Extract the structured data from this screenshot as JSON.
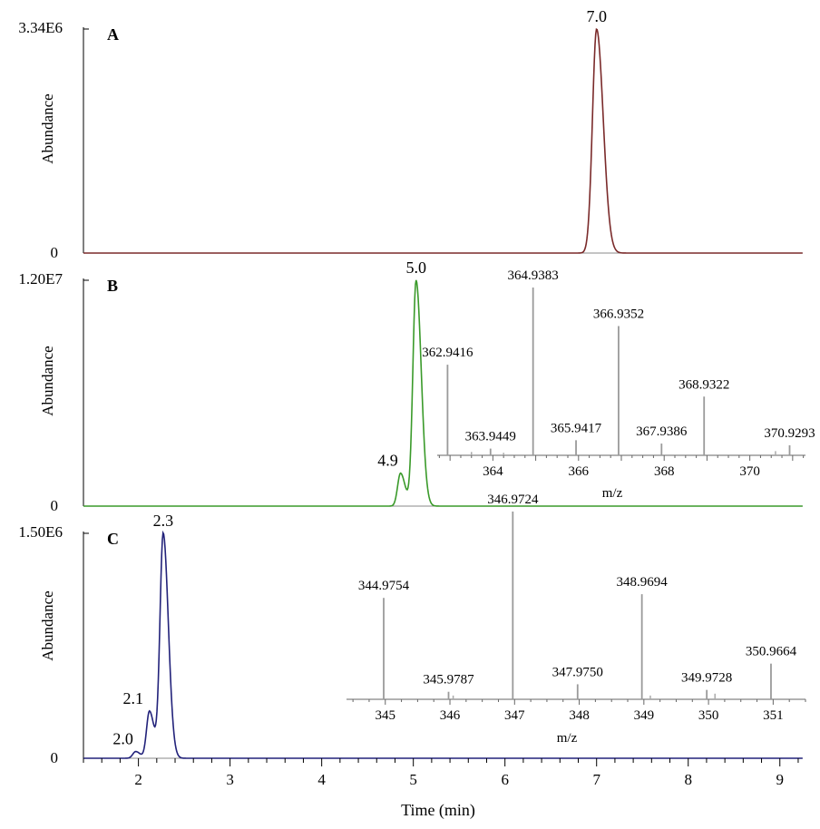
{
  "chart_data": [
    {
      "type": "line",
      "panel_label": "A",
      "y_top_label": "3.34E6",
      "y_zero_label": "0",
      "ylabel": "Abundance",
      "ylim": [
        0,
        3340000
      ],
      "xlim": [
        1.4,
        9.25
      ],
      "color": "#7a2a2a",
      "peaks": [
        {
          "label": "7.0",
          "x": 7.0,
          "y": 3340000
        }
      ]
    },
    {
      "type": "line",
      "panel_label": "B",
      "y_top_label": "1.20E7",
      "y_zero_label": "0",
      "ylabel": "Abundance",
      "ylim": [
        0,
        12000000
      ],
      "xlim": [
        1.4,
        9.25
      ],
      "color": "#3a9a2a",
      "peaks": [
        {
          "label": "4.9",
          "x": 4.86,
          "y": 1750000
        },
        {
          "label": "5.0",
          "x": 5.03,
          "y": 12000000
        }
      ],
      "inset": {
        "type": "bar",
        "xlabel": "m/z",
        "xlim": [
          362.7,
          371.3
        ],
        "ticks": [
          "364",
          "366",
          "368",
          "370"
        ],
        "tick_values": [
          364,
          366,
          368,
          370
        ],
        "labeled_peaks": [
          {
            "mz": "362.9416",
            "x": 362.9416,
            "rel": 0.54
          },
          {
            "mz": "363.9449",
            "x": 363.9449,
            "rel": 0.04
          },
          {
            "mz": "364.9383",
            "x": 364.9383,
            "rel": 1.0
          },
          {
            "mz": "365.9417",
            "x": 365.9417,
            "rel": 0.09
          },
          {
            "mz": "366.9352",
            "x": 366.9352,
            "rel": 0.77
          },
          {
            "mz": "367.9386",
            "x": 367.9386,
            "rel": 0.07
          },
          {
            "mz": "368.9322",
            "x": 368.9322,
            "rel": 0.35
          },
          {
            "mz": "370.9293",
            "x": 370.9293,
            "rel": 0.06
          }
        ],
        "minor_peaks": [
          {
            "x": 363.5,
            "rel": 0.02
          },
          {
            "x": 364.25,
            "rel": 0.015
          },
          {
            "x": 370.6,
            "rel": 0.025
          }
        ]
      }
    },
    {
      "type": "line",
      "panel_label": "C",
      "y_top_label": "1.50E6",
      "y_zero_label": "0",
      "ylabel": "Abundance",
      "ylim": [
        0,
        1500000
      ],
      "xlim": [
        1.4,
        9.25
      ],
      "color": "#22227a",
      "xlabel": "Time (min)",
      "x_ticks": [
        "2",
        "3",
        "4",
        "5",
        "6",
        "7",
        "8",
        "9"
      ],
      "x_tick_values": [
        2,
        3,
        4,
        5,
        6,
        7,
        8,
        9
      ],
      "peaks": [
        {
          "label": "2.0",
          "x": 1.97,
          "y": 45000
        },
        {
          "label": "2.1",
          "x": 2.12,
          "y": 315000
        },
        {
          "label": "2.3",
          "x": 2.27,
          "y": 1500000
        }
      ],
      "inset": {
        "type": "bar",
        "xlabel": "m/z",
        "xlim": [
          344.4,
          351.5
        ],
        "ticks": [
          "345",
          "346",
          "347",
          "348",
          "349",
          "350",
          "351"
        ],
        "tick_values": [
          345,
          346,
          347,
          348,
          349,
          350,
          351
        ],
        "labeled_peaks": [
          {
            "mz": "344.9754",
            "x": 344.9754,
            "rel": 0.54
          },
          {
            "mz": "345.9787",
            "x": 345.9787,
            "rel": 0.04
          },
          {
            "mz": "346.9724",
            "x": 346.9724,
            "rel": 1.0
          },
          {
            "mz": "347.9750",
            "x": 347.975,
            "rel": 0.08
          },
          {
            "mz": "348.9694",
            "x": 348.9694,
            "rel": 0.56
          },
          {
            "mz": "349.9728",
            "x": 349.9728,
            "rel": 0.05
          },
          {
            "mz": "350.9664",
            "x": 350.9664,
            "rel": 0.19
          }
        ],
        "minor_peaks": [
          {
            "x": 346.05,
            "rel": 0.02
          },
          {
            "x": 349.1,
            "rel": 0.02
          },
          {
            "x": 350.1,
            "rel": 0.03
          }
        ]
      }
    }
  ]
}
